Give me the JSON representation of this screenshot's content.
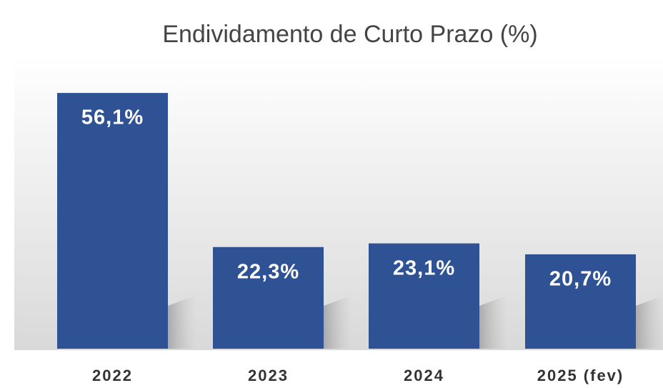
{
  "chart_data": {
    "type": "bar",
    "title": "Endividamento de Curto Prazo (%)",
    "categories": [
      "2022",
      "2023",
      "2024",
      "2025 (fev)"
    ],
    "values": [
      56.1,
      22.3,
      23.1,
      20.7
    ],
    "value_labels": [
      "56,1%",
      "22,3%",
      "23,1%",
      "20,7%"
    ],
    "color": "#2e5294"
  }
}
